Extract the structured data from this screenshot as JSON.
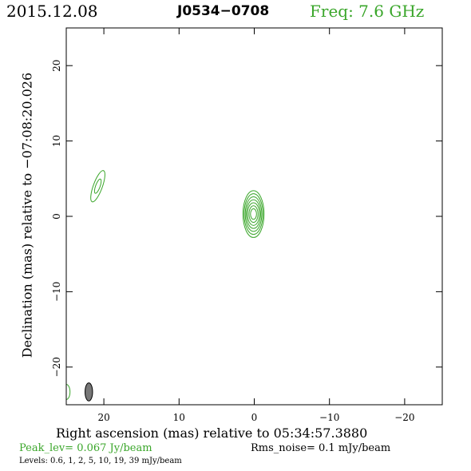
{
  "header": {
    "date": "2015.12.08",
    "source": "J0534−0708",
    "freq": "Freq: 7.6 GHz"
  },
  "colors": {
    "contour": "#3aa62a",
    "beam_fill": "#777777",
    "frame": "#000000"
  },
  "chart_data": {
    "type": "contour",
    "xlabel": "Right ascension (mas) relative to 05:34:57.3880",
    "ylabel": "Declination (mas) relative to −07:08:20.026",
    "xlim": [
      25,
      -25
    ],
    "ylim": [
      -25,
      25
    ],
    "x_ticks": [
      {
        "value": 20,
        "label": "20"
      },
      {
        "value": 10,
        "label": "10"
      },
      {
        "value": 0,
        "label": "0"
      },
      {
        "value": -10,
        "label": "−10"
      },
      {
        "value": -20,
        "label": "−20"
      }
    ],
    "y_ticks": [
      {
        "value": 20,
        "label": "20"
      },
      {
        "value": 10,
        "label": "10"
      },
      {
        "value": 0,
        "label": "0"
      },
      {
        "value": -10,
        "label": "−10"
      },
      {
        "value": -20,
        "label": "−20"
      }
    ],
    "main_component": {
      "x": 0.1,
      "y": 0.3,
      "contours": [
        {
          "a": 1.4,
          "b": 3.1
        },
        {
          "a": 1.25,
          "b": 2.7
        },
        {
          "a": 1.1,
          "b": 2.3
        },
        {
          "a": 0.95,
          "b": 1.9
        },
        {
          "a": 0.8,
          "b": 1.5
        },
        {
          "a": 0.6,
          "b": 1.1
        },
        {
          "a": 0.4,
          "b": 0.7
        }
      ]
    },
    "secondary_component": {
      "x": 20.8,
      "y": 4.0,
      "contours": [
        {
          "a": 0.6,
          "b": 2.2,
          "rot": 20
        },
        {
          "a": 0.3,
          "b": 1.0,
          "rot": 20
        }
      ]
    },
    "edge_component": {
      "x": 25.0,
      "y": -23.3,
      "a": 0.5,
      "b": 1.0
    },
    "beam": {
      "x": 22.0,
      "y": -23.3,
      "a": 0.5,
      "b": 1.2
    }
  },
  "footer": {
    "peak": "Peak_lev=  0.067 Jy/beam",
    "rms": "Rms_noise=  0.1 mJy/beam",
    "levels": "Levels: 0.6,   1,   2,   5,  10,  19,  39 mJy/beam"
  }
}
